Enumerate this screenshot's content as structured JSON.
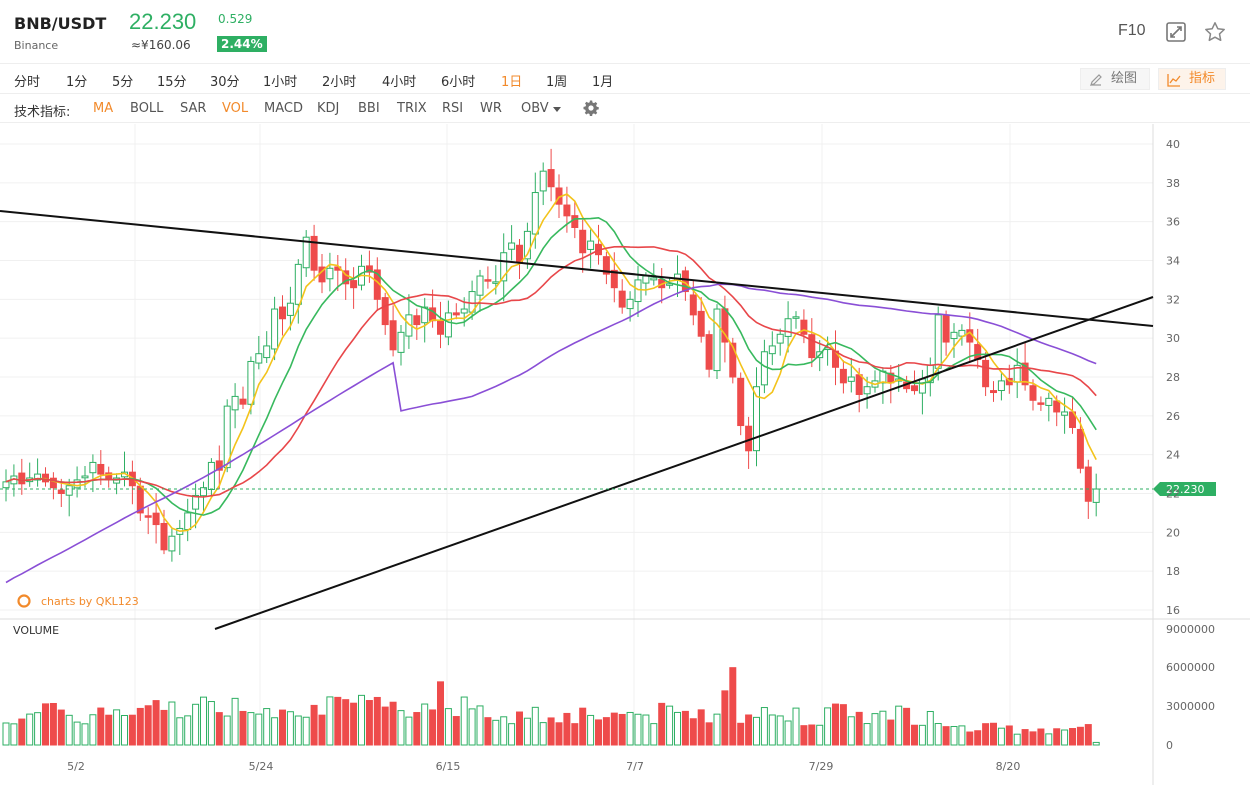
{
  "header": {
    "symbol": "BNB/USDT",
    "exchange": "Binance",
    "price": "22.230",
    "price_cny": "≈¥160.06",
    "change": "0.529",
    "change_pct": "2.44%",
    "f10_label": "F10"
  },
  "timeframes": [
    "分时",
    "1分",
    "5分",
    "15分",
    "30分",
    "1小时",
    "2小时",
    "4小时",
    "6小时",
    "1日",
    "1周",
    "1月"
  ],
  "active_timeframe": "1日",
  "tools": {
    "draw": "绘图",
    "indicator": "指标"
  },
  "indicators": {
    "label": "技术指标:",
    "items": [
      "MA",
      "BOLL",
      "SAR",
      "VOL",
      "MACD",
      "KDJ",
      "BBI",
      "TRIX",
      "RSI",
      "WR",
      "OBV"
    ],
    "active": [
      "MA",
      "VOL"
    ]
  },
  "chart": {
    "watermark": "charts by QKL123",
    "volume_label": "VOLUME",
    "current_price_tag": "22.230",
    "price_ticks": [
      "40",
      "38",
      "36",
      "34",
      "32",
      "30",
      "28",
      "26",
      "24",
      "22",
      "20",
      "18",
      "16"
    ],
    "volume_ticks": [
      "9000000",
      "6000000",
      "3000000",
      "0"
    ],
    "date_ticks": [
      "5/2",
      "5/24",
      "6/15",
      "7/7",
      "7/29",
      "8/20"
    ],
    "colors": {
      "up": "#2eaf63",
      "down": "#ee4b4b",
      "ma5": "#f3c31b",
      "ma10": "#38b95e",
      "ma20": "#e8474a",
      "ma60": "#8a4fd6",
      "accent": "#f28a2b"
    }
  },
  "chart_data": {
    "type": "candlestick",
    "ylim": [
      15,
      41
    ],
    "volume_ylim": [
      0,
      9000000
    ],
    "closes": [
      22.6,
      22.9,
      22.5,
      22.8,
      23.0,
      22.6,
      22.3,
      22.0,
      22.4,
      22.7,
      22.9,
      23.6,
      23.0,
      22.7,
      22.8,
      23.1,
      22.4,
      21.0,
      20.8,
      20.4,
      19.1,
      19.8,
      20.2,
      21.0,
      21.9,
      22.3,
      23.6,
      23.2,
      26.5,
      27.0,
      26.6,
      28.8,
      29.2,
      29.6,
      31.5,
      31.0,
      31.8,
      33.8,
      35.2,
      33.5,
      32.9,
      33.6,
      33.5,
      32.8,
      32.6,
      33.7,
      33.4,
      32.0,
      30.7,
      29.4,
      30.3,
      31.2,
      30.7,
      31.6,
      30.9,
      30.2,
      31.3,
      31.2,
      31.5,
      32.4,
      33.2,
      33.0,
      32.9,
      34.4,
      34.9,
      33.9,
      35.5,
      37.5,
      38.6,
      37.8,
      36.9,
      36.3,
      35.7,
      34.4,
      35.0,
      34.3,
      33.3,
      32.6,
      31.6,
      32.0,
      33.0,
      33.2,
      33.1,
      32.6,
      32.8,
      33.3,
      32.4,
      31.2,
      30.1,
      28.4,
      31.5,
      29.8,
      28.0,
      25.5,
      24.2,
      27.5,
      29.3,
      29.6,
      30.2,
      31.0,
      31.1,
      30.2,
      29.0,
      29.3,
      29.5,
      28.5,
      27.7,
      28.0,
      27.1,
      27.5,
      27.8,
      28.3,
      27.7,
      27.9,
      27.4,
      27.3,
      27.9,
      28.6,
      31.2,
      29.8,
      30.3,
      30.4,
      29.8,
      28.9,
      27.5,
      27.2,
      27.8,
      27.6,
      28.6,
      27.6,
      26.8,
      26.6,
      26.9,
      26.2,
      26.2,
      25.4,
      23.3,
      21.6,
      22.23
    ]
  }
}
